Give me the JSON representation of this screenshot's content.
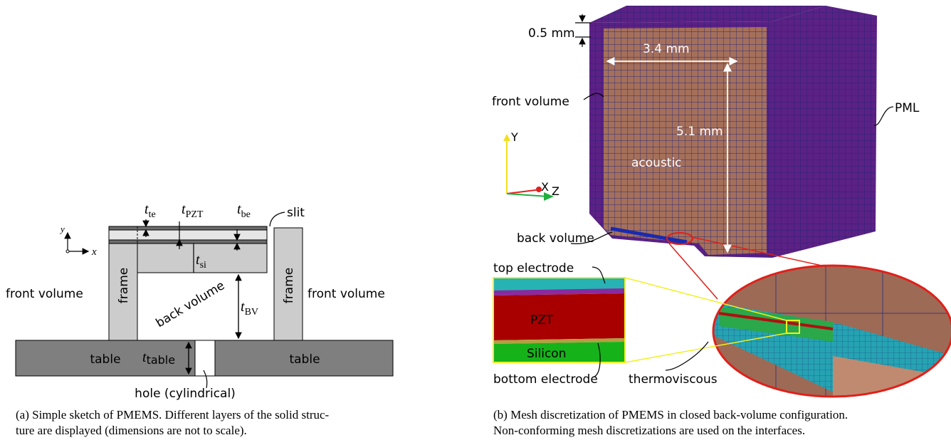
{
  "panel_a": {
    "t_te": {
      "symbol": "t",
      "subscript": "te"
    },
    "t_pzt": {
      "symbol": "t",
      "subscript": "PZT"
    },
    "t_be": {
      "symbol": "t",
      "subscript": "be"
    },
    "slit": "slit",
    "axis_y": "y",
    "axis_x": "x",
    "t_si": {
      "symbol": "t",
      "subscript": "si"
    },
    "front_volume_left": "front volume",
    "frame_left": "frame",
    "back_volume": "back volume",
    "t_bv": {
      "symbol": "t",
      "subscript": "BV"
    },
    "frame_right": "frame",
    "front_volume_right": "front volume",
    "table_left": "table",
    "t_table": {
      "symbol": "t",
      "subscript": "table"
    },
    "table_right": "table",
    "hole": "hole (cylindrical)",
    "caption": [
      "(a)  Simple sketch of PMEMS. Different layers of the solid struc-",
      "ture are displayed (dimensions are not to scale)."
    ]
  },
  "panel_b": {
    "dim_thickness": "0.5 mm",
    "dim_width": "3.4 mm",
    "front_volume": "front volume",
    "dim_height": "5.1 mm",
    "pml": "PML",
    "axis_y": "Y",
    "axis_x": "X",
    "axis_z": "Z",
    "acoustic": "acoustic",
    "back_volume": "back volume",
    "top_electrode": "top electrode",
    "pzt": "PZT",
    "silicon": "Silicon",
    "bottom_electrode": "bottom electrode",
    "thermoviscous": "thermoviscous",
    "caption": [
      "(b)  Mesh discretization of PMEMS in closed back-volume configuration.",
      "Non-conforming mesh discretizations are used on the interfaces."
    ]
  }
}
